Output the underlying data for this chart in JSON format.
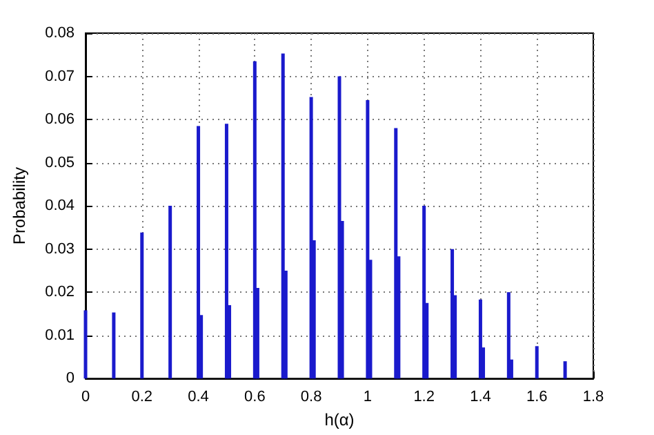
{
  "chart_data": {
    "type": "bar",
    "xlabel": "h(α)",
    "ylabel": "Probability",
    "x": [
      0,
      0.1,
      0.2,
      0.3,
      0.4,
      0.41,
      0.5,
      0.51,
      0.6,
      0.61,
      0.7,
      0.71,
      0.8,
      0.81,
      0.9,
      0.91,
      1.0,
      1.01,
      1.1,
      1.11,
      1.2,
      1.21,
      1.3,
      1.31,
      1.4,
      1.41,
      1.5,
      1.51,
      1.6,
      1.7
    ],
    "values": [
      0.0158,
      0.0153,
      0.0338,
      0.04,
      0.0585,
      0.0147,
      0.059,
      0.017,
      0.0735,
      0.021,
      0.0753,
      0.025,
      0.0652,
      0.032,
      0.07,
      0.0365,
      0.0645,
      0.0275,
      0.058,
      0.0283,
      0.04,
      0.0175,
      0.03,
      0.0193,
      0.0183,
      0.0072,
      0.02,
      0.0044,
      0.0075,
      0.004
    ],
    "color": "#1a1acc",
    "xlim": [
      0,
      1.8
    ],
    "xticks": [
      0,
      0.2,
      0.4,
      0.6,
      0.8,
      1,
      1.2,
      1.4,
      1.6,
      1.8
    ],
    "ylim": [
      0,
      0.08
    ],
    "yticks": [
      0,
      0.01,
      0.02,
      0.03,
      0.04,
      0.05,
      0.06,
      0.07,
      0.08
    ],
    "grid": true
  }
}
